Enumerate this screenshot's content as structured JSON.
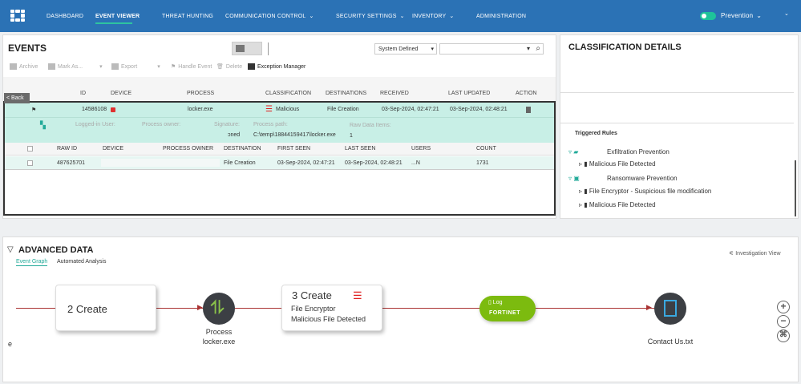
{
  "nav": {
    "items": [
      "DASHBOARD",
      "EVENT VIEWER",
      "THREAT HUNTING",
      "COMMUNICATION CONTROL",
      "SECURITY SETTINGS",
      "INVENTORY",
      "ADMINISTRATION"
    ],
    "active": "EVENT VIEWER",
    "mode": "Prevention",
    "accent": "#2ec4a0",
    "bar_color": "#2b72b5"
  },
  "events": {
    "title": "EVENTS",
    "toolbar": [
      "Archive",
      "Mark As...",
      "Export",
      "Handle Event",
      "Delete",
      "Exception Manager"
    ],
    "filter": "System Defined",
    "search_value": "",
    "back": "< Back",
    "columns": [
      "ID",
      "DEVICE",
      "PROCESS",
      "CLASSIFICATION",
      "DESTINATIONS",
      "RECEIVED",
      "LAST UPDATED",
      "ACTION"
    ],
    "row": {
      "id": "14586108",
      "process": "locker.exe",
      "classification": "Malicious",
      "destinations": "File Creation",
      "received": "03-Sep-2024, 02:47:21",
      "last_updated": "03-Sep-2024, 02:48:21"
    },
    "details": {
      "logged_in_user": "Logged-in User:",
      "process_owner": "Process owner:",
      "signature": "Signature:",
      "signature_value": "ɔned",
      "process_path": "Process path:",
      "process_path_value": "C:\\temp\\18844159417\\locker.exe",
      "raw_items": "Raw Data Items:",
      "raw_items_value": "1"
    },
    "raw_columns": [
      "RAW ID",
      "DEVICE",
      "PROCESS OWNER",
      "DESTINATION",
      "FIRST SEEN",
      "LAST SEEN",
      "USERS",
      "COUNT"
    ],
    "raw_row": {
      "raw_id": "487625701",
      "destination": "File Creation",
      "first_seen": "03-Sep-2024, 02:47:21",
      "last_seen": "03-Sep-2024, 02:48:21",
      "users": "...N",
      "count": "1731"
    }
  },
  "classification": {
    "title": "CLASSIFICATION DETAILS",
    "triggered": "Triggered Rules",
    "rules": [
      {
        "name": "Exfiltration Prevention",
        "children": [
          "Malicious File Detected"
        ]
      },
      {
        "name": "Ransomware Prevention",
        "children": [
          "File Encryptor - Suspicious file modification",
          "Malicious File Detected"
        ]
      }
    ]
  },
  "advanced": {
    "title": "ADVANCED DATA",
    "tabs": [
      "Event Graph",
      "Automated Analysis"
    ],
    "investigation": "Investigation View",
    "graph": {
      "left_stub": "e",
      "node1": "2 Create",
      "process_label": "Process",
      "process_name": "locker.exe",
      "node2": "3 Create",
      "node2_line1": "File Encryptor",
      "node2_line2": "Malicious File Detected",
      "log": "Log",
      "log_brand": "FORTINET",
      "file": "Contact Us.txt"
    }
  }
}
